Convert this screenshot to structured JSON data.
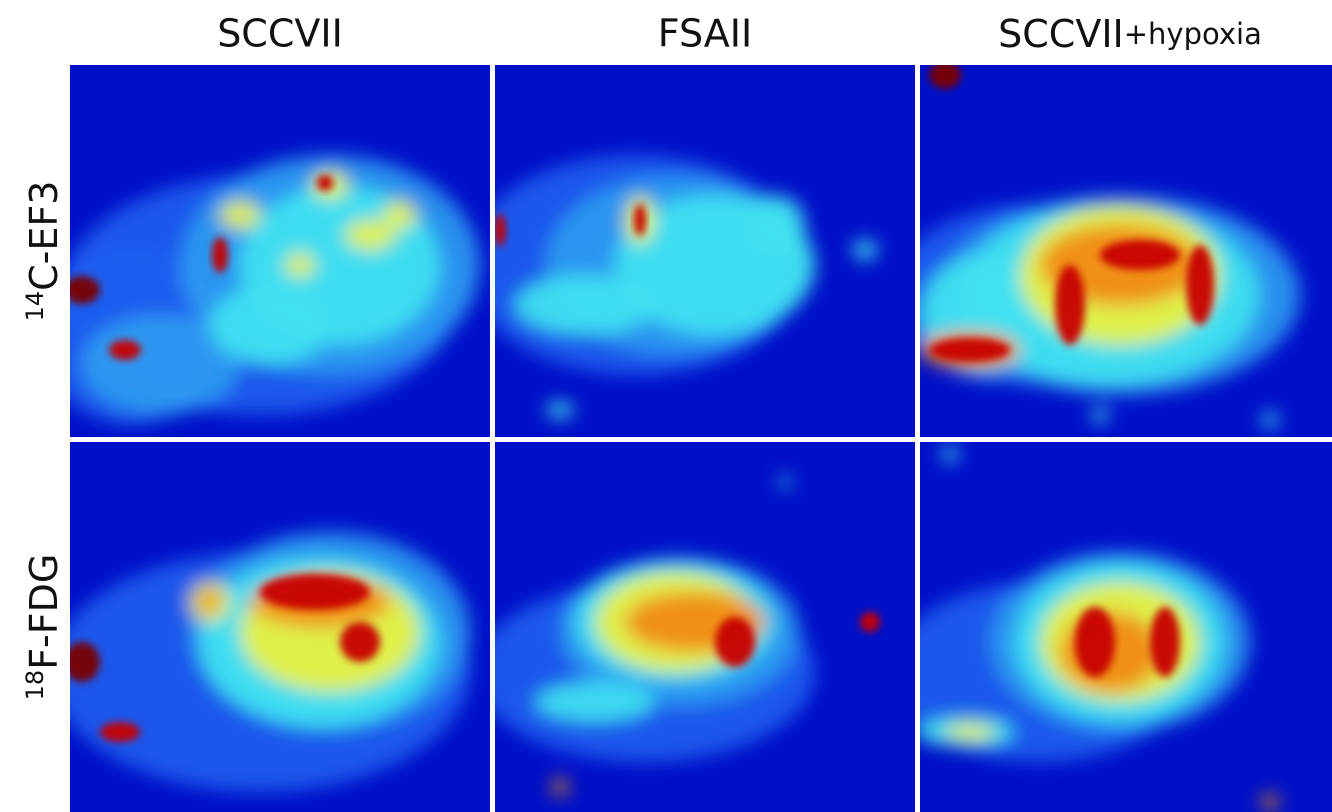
{
  "columns": [
    {
      "label": "SCCVII"
    },
    {
      "label": "FSAII"
    },
    {
      "label": "SCCVII",
      "suffix": "+hypoxia"
    }
  ],
  "rows": [
    {
      "superscript": "14",
      "label": "C-EF3"
    },
    {
      "superscript": "18",
      "label": "F-FDG"
    }
  ]
}
